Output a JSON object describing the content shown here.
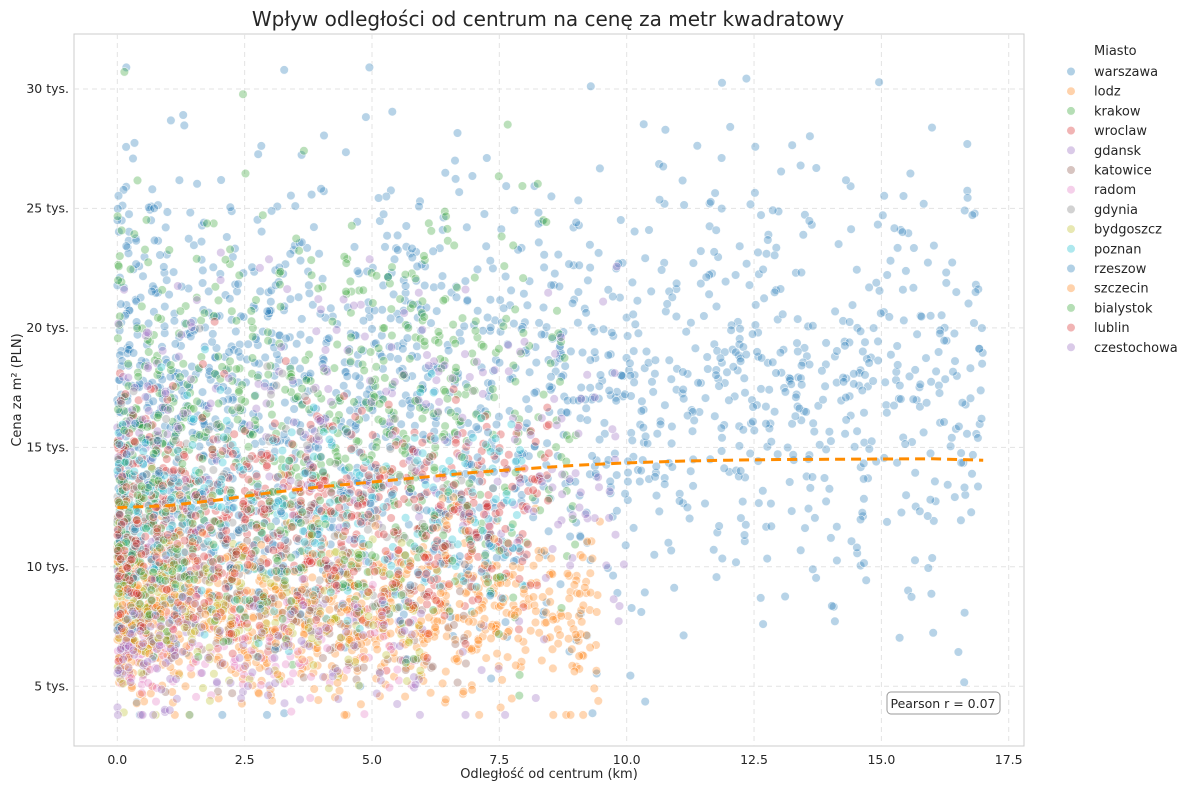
{
  "chart_data": {
    "type": "scatter",
    "title": "Wpływ odległości od centrum na cenę za metr kwadratowy",
    "xlabel": "Odległość od centrum (km)",
    "ylabel": "Cena za m² (PLN)",
    "xlim": [
      -0.85,
      17.8
    ],
    "ylim": [
      2500,
      32300
    ],
    "x_ticks": [
      0,
      2.5,
      5,
      7.5,
      10,
      12.5,
      15,
      17.5
    ],
    "x_tick_labels": [
      "0.0",
      "2.5",
      "5.0",
      "7.5",
      "10.0",
      "12.5",
      "15.0",
      "17.5"
    ],
    "y_ticks": [
      5000,
      10000,
      15000,
      20000,
      25000,
      30000
    ],
    "y_tick_labels": [
      "5 tys.",
      "10 tys.",
      "15 tys.",
      "20 tys.",
      "25 tys.",
      "30 tys."
    ],
    "grid": true,
    "legend_placement": "outside-top-right",
    "legend_title": "Miasto",
    "series": [
      {
        "name": "warszawa",
        "color": "#1f77b4",
        "x_range": [
          0,
          17
        ],
        "y_mean": 17500,
        "y_sd": 4500,
        "points": 1700
      },
      {
        "name": "lodz",
        "color": "#ff7f0e",
        "x_range": [
          0,
          9.5
        ],
        "y_mean": 8000,
        "y_sd": 1800,
        "points": 700
      },
      {
        "name": "krakow",
        "color": "#2ca02c",
        "x_range": [
          0,
          9
        ],
        "y_mean": 16500,
        "y_sd": 3800,
        "points": 600
      },
      {
        "name": "wroclaw",
        "color": "#d62728",
        "x_range": [
          0,
          8.5
        ],
        "y_mean": 12500,
        "y_sd": 2300,
        "points": 500
      },
      {
        "name": "gdansk",
        "color": "#9467bd",
        "x_range": [
          0,
          10
        ],
        "y_mean": 14000,
        "y_sd": 4200,
        "points": 320
      },
      {
        "name": "katowice",
        "color": "#8c564b",
        "x_range": [
          0,
          7
        ],
        "y_mean": 8500,
        "y_sd": 1800,
        "points": 200
      },
      {
        "name": "radom",
        "color": "#e377c2",
        "x_range": [
          0,
          6
        ],
        "y_mean": 7000,
        "y_sd": 1400,
        "points": 150
      },
      {
        "name": "gdynia",
        "color": "#7f7f7f",
        "x_range": [
          0,
          7
        ],
        "y_mean": 12500,
        "y_sd": 2800,
        "points": 150
      },
      {
        "name": "bydgoszcz",
        "color": "#bcbd22",
        "x_range": [
          0,
          6
        ],
        "y_mean": 8000,
        "y_sd": 1600,
        "points": 200
      },
      {
        "name": "poznan",
        "color": "#17becf",
        "x_range": [
          0,
          8
        ],
        "y_mean": 12000,
        "y_sd": 2200,
        "points": 300
      },
      {
        "name": "rzeszow",
        "color": "#1f77b4",
        "x_range": [
          0,
          8
        ],
        "y_mean": 11000,
        "y_sd": 2000,
        "points": 150
      },
      {
        "name": "szczecin",
        "color": "#ff7f0e",
        "x_range": [
          0,
          8
        ],
        "y_mean": 9000,
        "y_sd": 1800,
        "points": 200
      },
      {
        "name": "bialystok",
        "color": "#2ca02c",
        "x_range": [
          0,
          8
        ],
        "y_mean": 11000,
        "y_sd": 2200,
        "points": 200
      },
      {
        "name": "lublin",
        "color": "#d62728",
        "x_range": [
          0,
          8
        ],
        "y_mean": 10500,
        "y_sd": 2000,
        "points": 200
      },
      {
        "name": "czestochowa",
        "color": "#9467bd",
        "x_range": [
          0,
          6
        ],
        "y_mean": 6500,
        "y_sd": 1300,
        "points": 120
      }
    ],
    "trend_line": {
      "color": "#ff8c00",
      "style": "dashed",
      "x": [
        0,
        1,
        2,
        3,
        4,
        5,
        6,
        7,
        8,
        9,
        10,
        11,
        12,
        13,
        14,
        15,
        16,
        17
      ],
      "y": [
        12480,
        12560,
        12800,
        13100,
        13350,
        13550,
        13750,
        13950,
        14100,
        14250,
        14350,
        14420,
        14460,
        14490,
        14500,
        14510,
        14520,
        14460
      ]
    },
    "annotation": "Pearson r = 0.07"
  }
}
